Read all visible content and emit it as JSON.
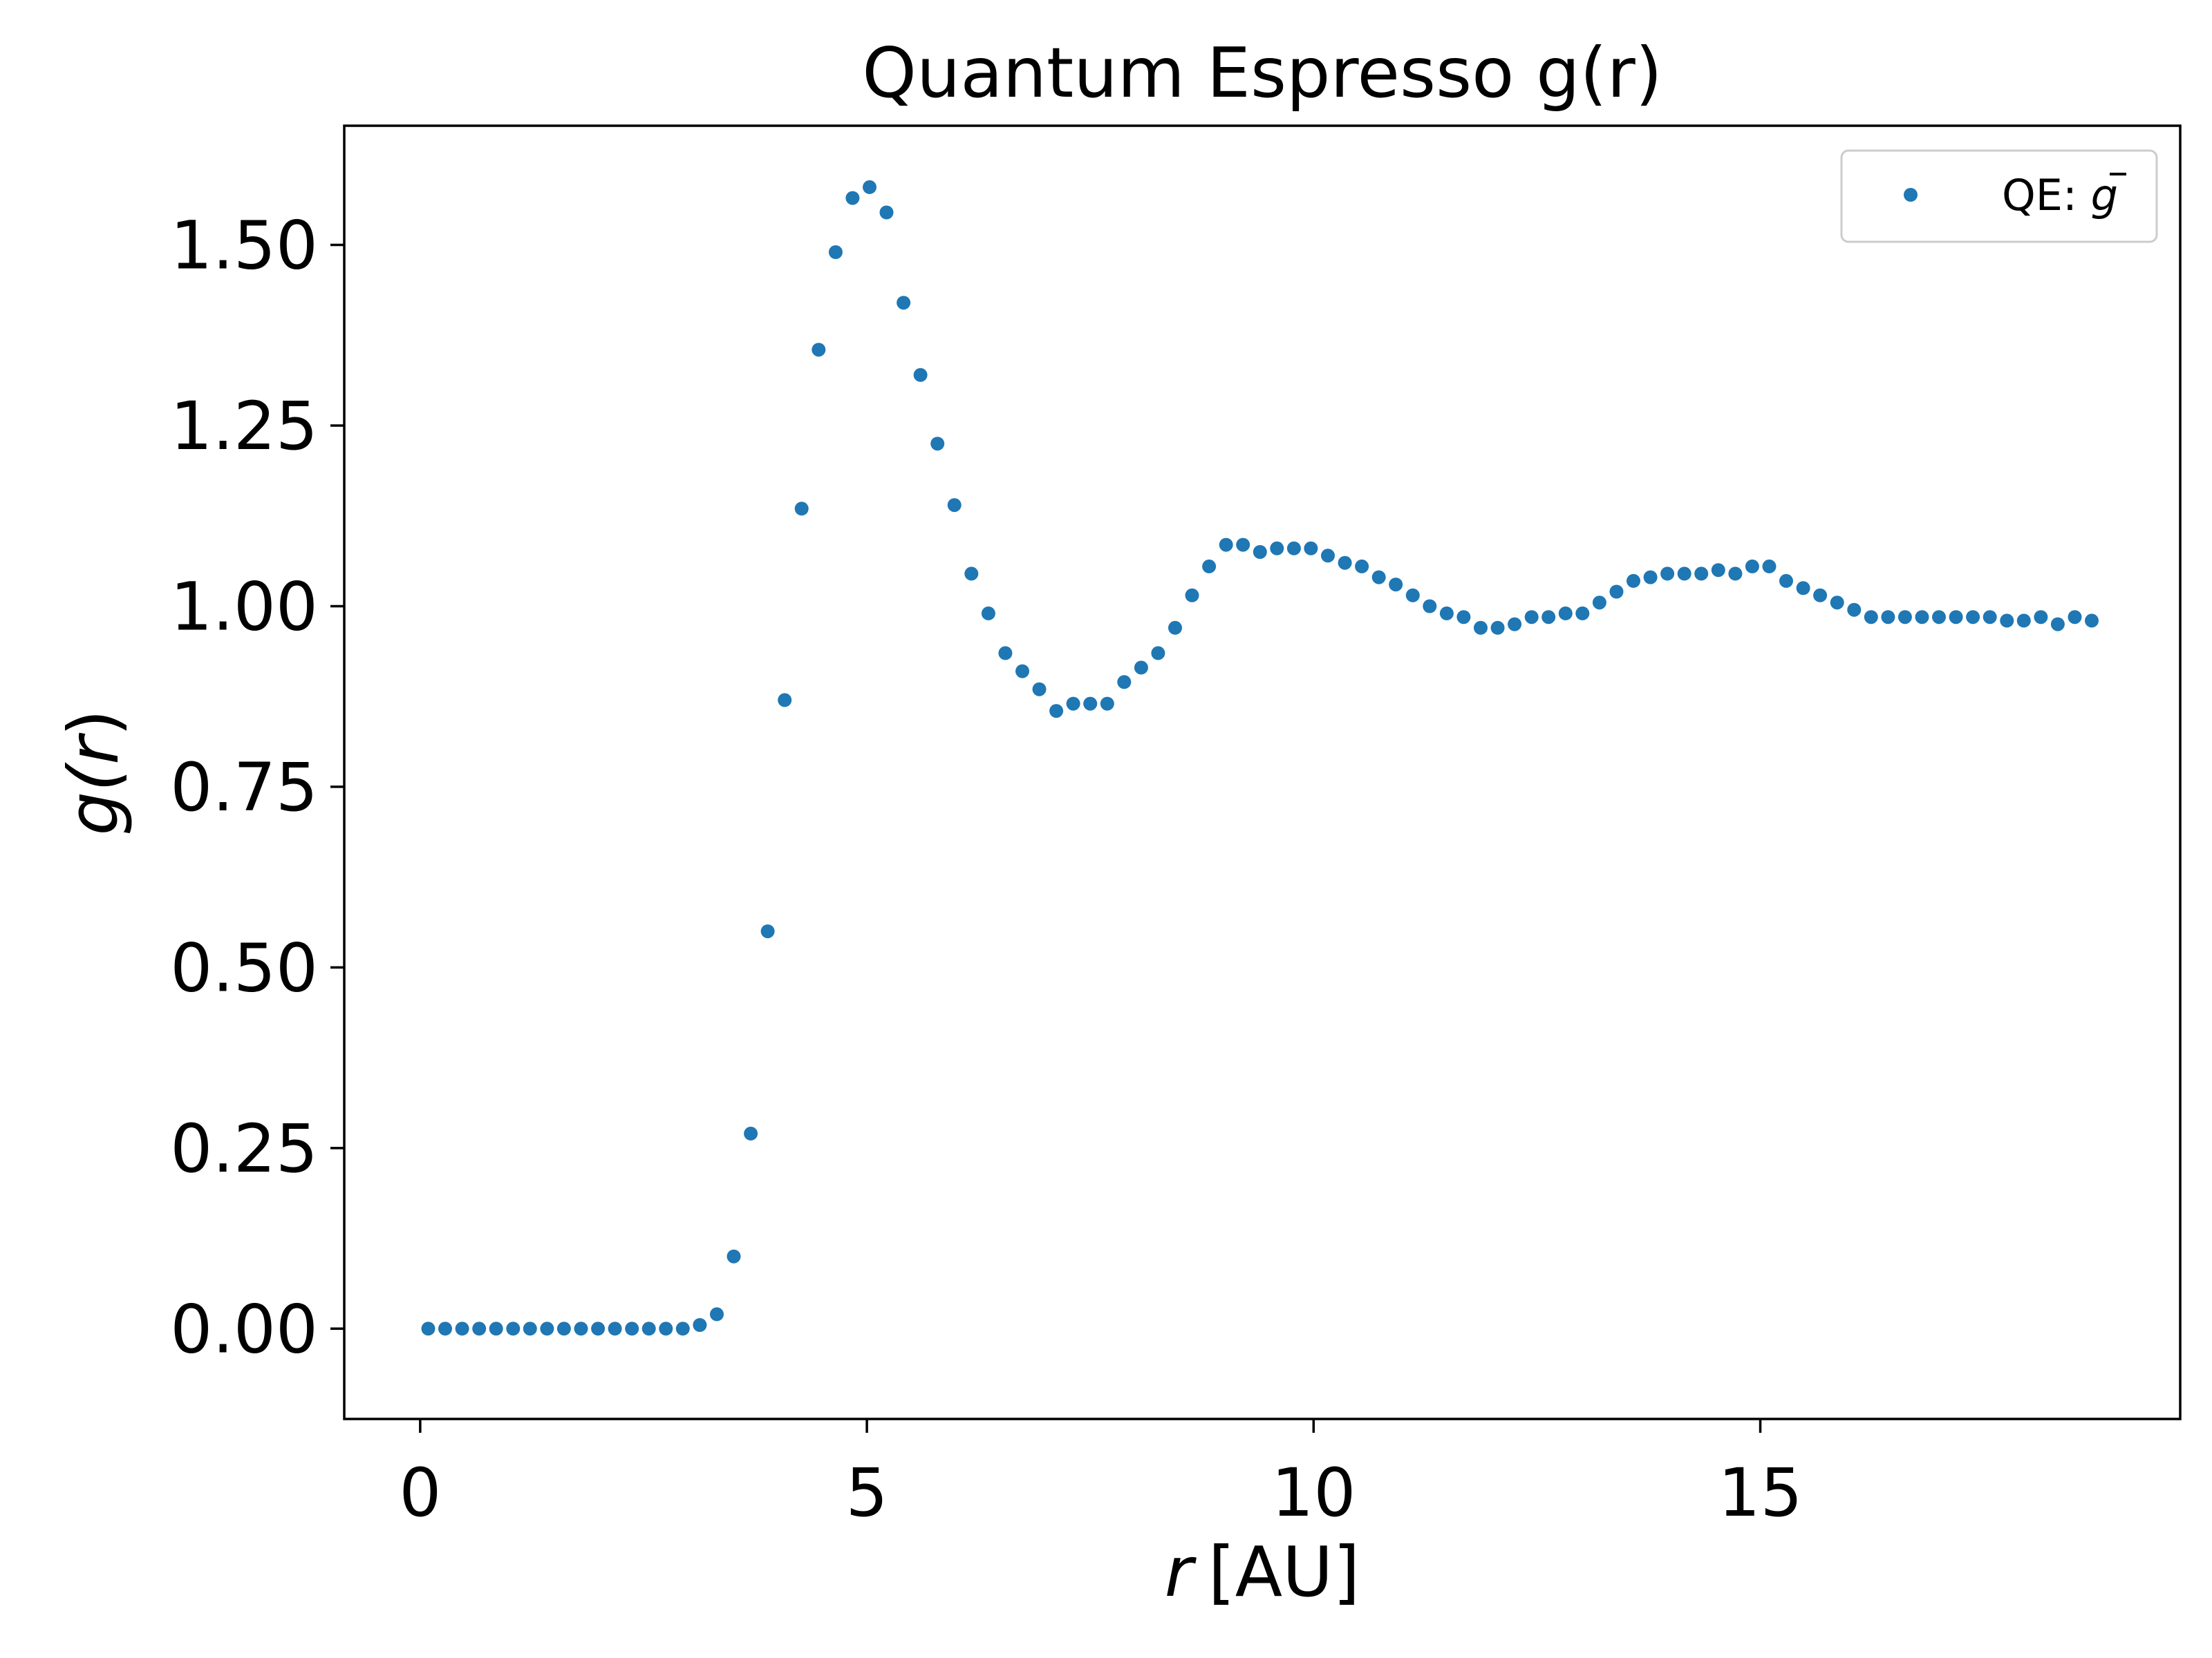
{
  "chart_data": {
    "type": "scatter",
    "title": "Quantum Espresso g(r)",
    "xlabel_var": "r",
    "xlabel_unit": "[AU]",
    "ylabel_fn": "g(",
    "ylabel_var": "r",
    "ylabel_close": ")",
    "xlim": [
      -0.85,
      19.7
    ],
    "ylim": [
      -0.125,
      1.665
    ],
    "xticks": [
      0,
      5,
      10,
      15
    ],
    "xtick_labels": [
      "0",
      "5",
      "10",
      "15"
    ],
    "yticks": [
      0.0,
      0.25,
      0.5,
      0.75,
      1.0,
      1.25,
      1.5
    ],
    "ytick_labels": [
      "0.00",
      "0.25",
      "0.50",
      "0.75",
      "1.00",
      "1.25",
      "1.50"
    ],
    "grid": false,
    "legend_position": "top-right",
    "series": [
      {
        "name": "QE: ",
        "name_math": "g",
        "color": "#1f77b4",
        "marker": "circle",
        "x": [
          0.09,
          0.28,
          0.47,
          0.66,
          0.85,
          1.04,
          1.23,
          1.42,
          1.61,
          1.8,
          1.99,
          2.18,
          2.37,
          2.56,
          2.75,
          2.94,
          3.13,
          3.32,
          3.51,
          3.7,
          3.89,
          4.08,
          4.27,
          4.46,
          4.65,
          4.84,
          5.03,
          5.22,
          5.41,
          5.6,
          5.79,
          5.98,
          6.17,
          6.36,
          6.55,
          6.74,
          6.93,
          7.12,
          7.31,
          7.5,
          7.69,
          7.88,
          8.07,
          8.26,
          8.45,
          8.64,
          8.83,
          9.02,
          9.21,
          9.4,
          9.59,
          9.78,
          9.97,
          10.16,
          10.35,
          10.54,
          10.73,
          10.92,
          11.11,
          11.3,
          11.49,
          11.68,
          11.87,
          12.06,
          12.25,
          12.44,
          12.63,
          12.82,
          13.01,
          13.2,
          13.39,
          13.58,
          13.77,
          13.96,
          14.15,
          14.34,
          14.53,
          14.72,
          14.91,
          15.1,
          15.29,
          15.48,
          15.67,
          15.86,
          16.05,
          16.24,
          16.43,
          16.62,
          16.81,
          17.0,
          17.19,
          17.38,
          17.57,
          17.76,
          17.95,
          18.14,
          18.33,
          18.52,
          18.71
        ],
        "y": [
          0.0,
          0.0,
          0.0,
          0.0,
          0.0,
          0.0,
          0.0,
          0.0,
          0.0,
          0.0,
          0.0,
          0.0,
          0.0,
          0.0,
          0.0,
          0.0,
          0.005,
          0.02,
          0.1,
          0.27,
          0.55,
          0.87,
          1.135,
          1.355,
          1.49,
          1.565,
          1.58,
          1.545,
          1.42,
          1.32,
          1.225,
          1.14,
          1.045,
          0.99,
          0.935,
          0.91,
          0.885,
          0.855,
          0.865,
          0.865,
          0.865,
          0.895,
          0.915,
          0.935,
          0.97,
          1.015,
          1.055,
          1.085,
          1.085,
          1.075,
          1.08,
          1.08,
          1.08,
          1.07,
          1.06,
          1.055,
          1.04,
          1.03,
          1.015,
          1.0,
          0.99,
          0.985,
          0.97,
          0.97,
          0.975,
          0.985,
          0.985,
          0.99,
          0.99,
          1.005,
          1.02,
          1.035,
          1.04,
          1.045,
          1.045,
          1.045,
          1.05,
          1.045,
          1.055,
          1.055,
          1.035,
          1.025,
          1.015,
          1.005,
          0.995,
          0.985,
          0.985,
          0.985,
          0.985,
          0.985,
          0.985,
          0.985,
          0.985,
          0.98,
          0.98,
          0.985,
          0.975,
          0.985,
          0.98
        ]
      }
    ]
  }
}
